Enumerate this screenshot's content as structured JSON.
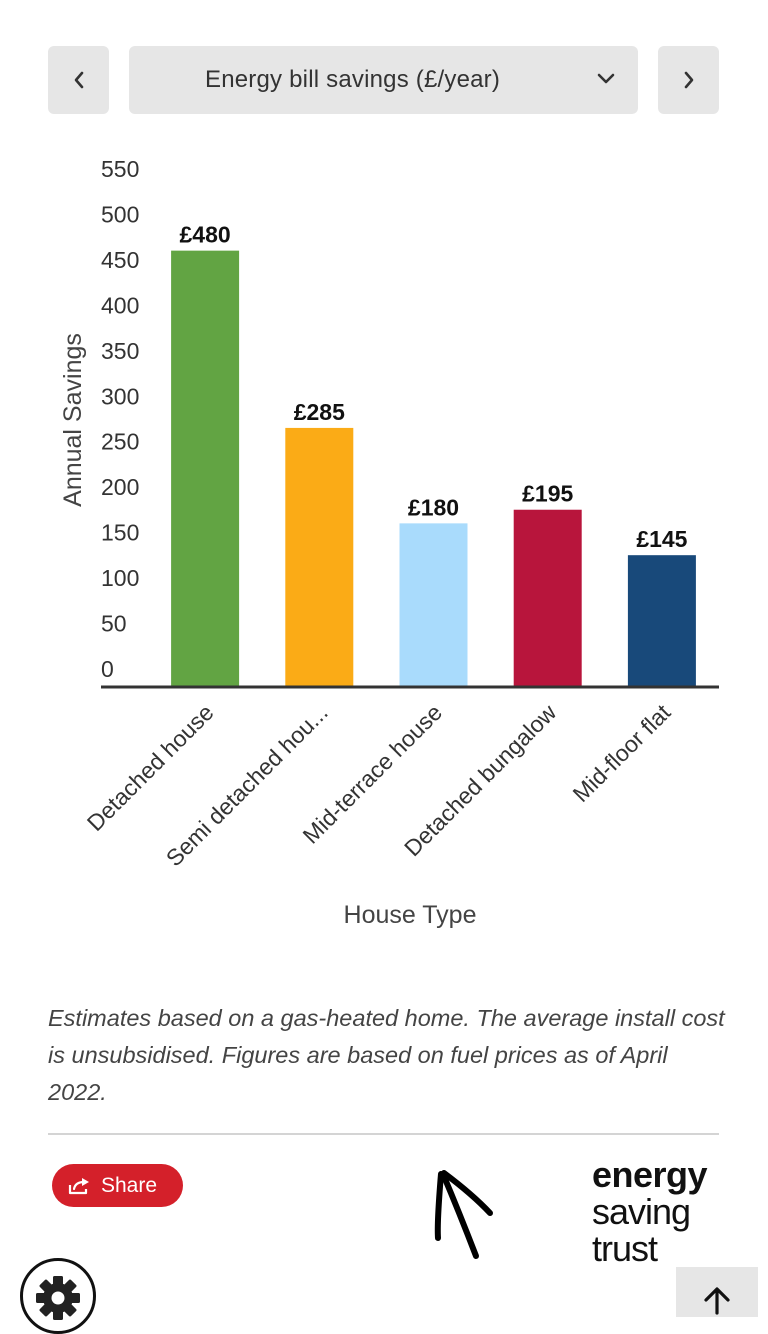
{
  "nav": {
    "selected_metric": "Energy bill savings (£/year)",
    "prev_icon": "chevron-left-icon",
    "next_icon": "chevron-right-icon",
    "dropdown_icon": "chevron-down-icon"
  },
  "chart_data": {
    "type": "bar",
    "categories": [
      "Detached house",
      "Semi detached hou...",
      "Mid-terrace house",
      "Detached bungalow",
      "Mid-floor flat"
    ],
    "values": [
      480,
      285,
      180,
      195,
      145
    ],
    "data_labels": [
      "£480",
      "£285",
      "£180",
      "£195",
      "£145"
    ],
    "colors": [
      "#62a443",
      "#fbab16",
      "#a9dbfc",
      "#b8153c",
      "#18497a"
    ],
    "xlabel": "House Type",
    "ylabel": "Annual Savings",
    "ylim": [
      0,
      550
    ],
    "yticks": [
      0,
      50,
      100,
      150,
      200,
      250,
      300,
      350,
      400,
      450,
      500,
      550
    ],
    "grid": false,
    "legend": "none"
  },
  "note": "Estimates based on a gas-heated home. The average install cost is unsubsidised. Figures are based on fuel prices as of April 2022.",
  "footer": {
    "share_label": "Share",
    "share_icon": "share-icon",
    "logo_lines": [
      "energy",
      "saving",
      "trust"
    ],
    "settings_icon": "gear-icon",
    "back_to_top_icon": "arrow-up-icon",
    "annotation_icon": "hand-drawn-arrow-icon"
  }
}
